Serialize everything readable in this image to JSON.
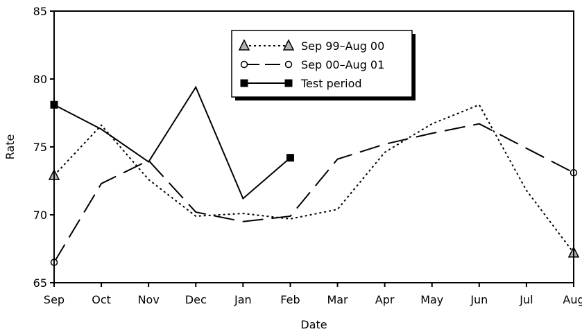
{
  "chart_data": {
    "type": "line",
    "title": "",
    "xlabel": "Date",
    "ylabel": "Rate",
    "categories": [
      "Sep",
      "Oct",
      "Nov",
      "Dec",
      "Jan",
      "Feb",
      "Mar",
      "Apr",
      "May",
      "Jun",
      "Jul",
      "Aug"
    ],
    "ylim": [
      65,
      85
    ],
    "yticks": [
      65,
      70,
      75,
      80,
      85
    ],
    "grid": false,
    "legend_position": "top-center",
    "series": [
      {
        "name": "Sep 99–Aug 00",
        "style": "dotted",
        "marker": "triangle",
        "marker_color": "#b3b3b3",
        "marker_points": [
          "Sep",
          "Aug"
        ],
        "values": [
          72.9,
          76.6,
          72.6,
          69.9,
          70.1,
          69.7,
          70.4,
          74.6,
          76.7,
          78.1,
          71.8,
          67.2
        ]
      },
      {
        "name": "Sep 00–Aug 01",
        "style": "dashed",
        "marker": "circle",
        "marker_color": "#ffffff",
        "marker_points": [
          "Sep",
          "Aug"
        ],
        "values": [
          66.5,
          72.3,
          74.0,
          70.2,
          69.5,
          69.9,
          74.1,
          75.2,
          76.0,
          76.7,
          74.9,
          73.1
        ]
      },
      {
        "name": "Test period",
        "style": "solid",
        "marker": "square",
        "marker_color": "#000000",
        "marker_points": [
          "Sep",
          "Feb"
        ],
        "values": [
          78.1,
          76.3,
          73.9,
          79.4,
          71.2,
          74.2,
          null,
          null,
          null,
          null,
          null,
          null
        ]
      }
    ]
  }
}
